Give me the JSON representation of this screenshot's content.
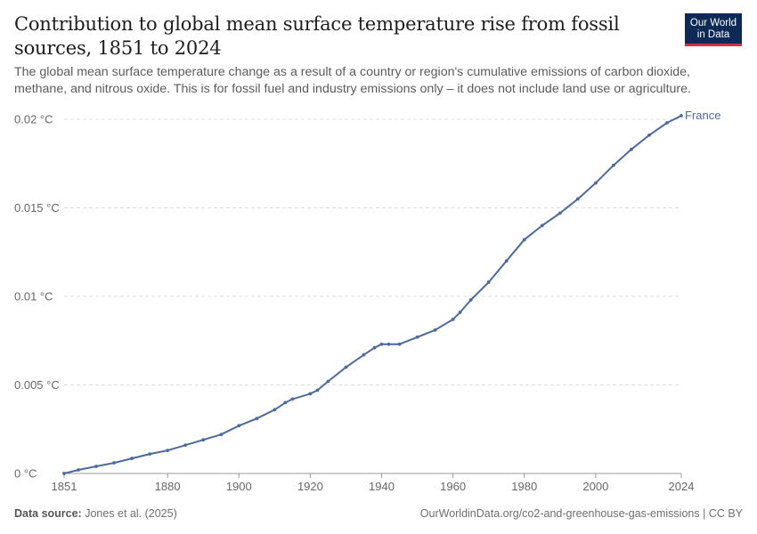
{
  "header": {
    "title": "Contribution to global mean surface temperature rise from fossil sources, 1851 to 2024",
    "subtitle": "The global mean surface temperature change as a result of a country or region's cumulative emissions of carbon dioxide, methane, and nitrous oxide. This is for fossil fuel and industry emissions only – it does not include land use or agriculture."
  },
  "logo": {
    "line1": "Our World",
    "line2": "in Data"
  },
  "footer": {
    "source_label": "Data source:",
    "source_value": "Jones et al. (2025)",
    "url": "OurWorldinData.org/co2-and-greenhouse-gas-emissions | CC BY"
  },
  "colors": {
    "series": "#4c6a9c",
    "grid": "#dddddd",
    "axis": "#999999"
  },
  "chart_data": {
    "type": "line",
    "title": "Contribution to global mean surface temperature rise from fossil sources, 1851 to 2024",
    "xlim": [
      1851,
      2024
    ],
    "ylim": [
      0,
      0.02
    ],
    "y_ticks": [
      0,
      0.005,
      0.01,
      0.015,
      0.02
    ],
    "y_tick_labels": [
      "0 °C",
      "0.005 °C",
      "0.01 °C",
      "0.015 °C",
      "0.02 °C"
    ],
    "x_ticks": [
      1851,
      1880,
      1900,
      1920,
      1940,
      1960,
      1980,
      2000,
      2024
    ],
    "x_tick_labels": [
      "1851",
      "1880",
      "1900",
      "1920",
      "1940",
      "1960",
      "1980",
      "2000",
      "2024"
    ],
    "grid": "horizontal dashed",
    "legend": "end-of-line label",
    "series": [
      {
        "name": "France",
        "x": [
          1851,
          1855,
          1860,
          1865,
          1870,
          1875,
          1880,
          1885,
          1890,
          1895,
          1900,
          1905,
          1910,
          1913,
          1915,
          1920,
          1922,
          1925,
          1930,
          1935,
          1938,
          1940,
          1942,
          1945,
          1950,
          1955,
          1960,
          1962,
          1965,
          1970,
          1975,
          1980,
          1985,
          1990,
          1995,
          2000,
          2005,
          2010,
          2015,
          2020,
          2024
        ],
        "values": [
          0.0,
          0.0002,
          0.0004,
          0.0006,
          0.00085,
          0.0011,
          0.0013,
          0.0016,
          0.0019,
          0.0022,
          0.0027,
          0.0031,
          0.0036,
          0.004,
          0.0042,
          0.0045,
          0.0047,
          0.0052,
          0.006,
          0.0067,
          0.0071,
          0.0073,
          0.0073,
          0.0073,
          0.0077,
          0.0081,
          0.0087,
          0.0091,
          0.0098,
          0.0108,
          0.012,
          0.0132,
          0.014,
          0.0147,
          0.0155,
          0.0164,
          0.0174,
          0.0183,
          0.0191,
          0.0198,
          0.0202
        ]
      }
    ]
  }
}
